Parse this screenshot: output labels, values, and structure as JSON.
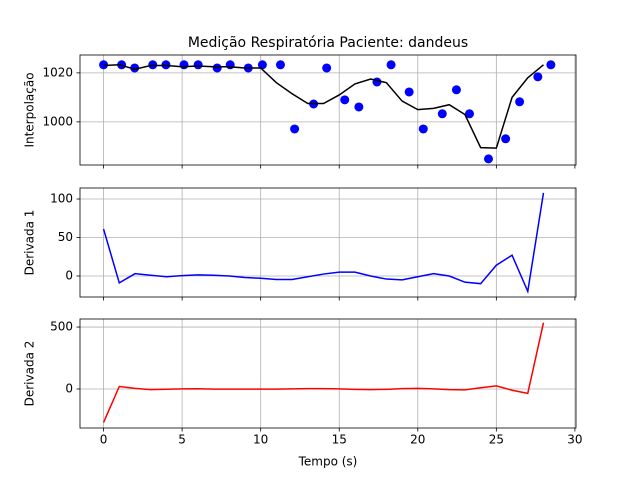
{
  "chart_data": [
    {
      "type": "line",
      "title": "Medição Respiratória Paciente: dandeus",
      "ylabel": "Interpolação",
      "xlim": [
        -1.5,
        30.07
      ],
      "xticks": [
        0,
        5,
        10,
        15,
        20,
        25,
        30
      ],
      "show_xtick_labels": false,
      "ylim": [
        982.4,
        1027.3
      ],
      "yticks": [
        1000,
        1020
      ],
      "grid": true,
      "series": [
        {
          "kind": "scatter",
          "color": "#0000ff",
          "x": [
            0,
            1.15,
            1.98,
            3.13,
            3.97,
            5.12,
            6.02,
            7.23,
            8.06,
            9.21,
            10.11,
            11.26,
            12.16,
            13.37,
            14.2,
            15.35,
            16.25,
            17.4,
            18.3,
            19.45,
            20.35,
            21.56,
            22.46,
            23.29,
            24.5,
            25.59,
            26.48,
            27.64,
            28.47
          ],
          "values": [
            1023.3,
            1023.3,
            1022,
            1023.3,
            1023.3,
            1023.3,
            1023.3,
            1022,
            1023.3,
            1022,
            1023.3,
            1023.3,
            997.1,
            1007.3,
            1022,
            1009,
            1006.1,
            1016.3,
            1023.3,
            1012.2,
            997.1,
            1003.3,
            1013.1,
            1003.3,
            984.9,
            993.1,
            1008.2,
            1018.4,
            1023.3
          ]
        },
        {
          "kind": "line",
          "color": "#000000",
          "x": [
            0,
            1,
            2,
            3,
            4,
            5,
            6,
            7,
            8,
            9,
            10,
            11,
            12,
            13,
            14,
            15,
            16,
            17,
            18,
            19,
            20,
            21,
            22,
            23,
            24,
            25,
            26,
            27,
            28
          ],
          "values": [
            1023,
            1023.3,
            1021.5,
            1023,
            1023,
            1022.5,
            1022.8,
            1022.5,
            1022.5,
            1022,
            1022,
            1016,
            1011.5,
            1007.5,
            1007.5,
            1011,
            1015.5,
            1017.5,
            1016,
            1008.5,
            1005,
            1005.5,
            1007,
            1003,
            989.5,
            989.3,
            1010,
            1018,
            1023.3
          ]
        }
      ]
    },
    {
      "type": "line",
      "ylabel": "Derivada 1",
      "xlim": [
        -1.5,
        30.07
      ],
      "xticks": [
        0,
        5,
        10,
        15,
        20,
        25,
        30
      ],
      "show_xtick_labels": false,
      "ylim": [
        -27.3,
        114.3
      ],
      "yticks": [
        0,
        50,
        100
      ],
      "grid": true,
      "series": [
        {
          "kind": "line",
          "color": "#0000ff",
          "x": [
            0,
            1,
            2,
            3,
            4,
            5,
            6,
            7,
            8,
            9,
            10,
            11,
            12,
            13,
            14,
            15,
            16,
            17,
            18,
            19,
            20,
            21,
            22,
            23,
            24,
            25,
            26,
            27,
            28
          ],
          "values": [
            61,
            -9,
            3,
            1,
            -1,
            0.5,
            1.5,
            1,
            0,
            -2,
            -3,
            -4.5,
            -4.5,
            -1,
            2.5,
            5,
            5,
            0,
            -4,
            -5,
            -1,
            3,
            0,
            -8,
            -10,
            14,
            27,
            -20,
            108
          ]
        }
      ]
    },
    {
      "type": "line",
      "ylabel": "Derivada 2",
      "xlabel": "Tempo (s)",
      "xlim": [
        -1.5,
        30.07
      ],
      "xticks": [
        0,
        5,
        10,
        15,
        20,
        25,
        30
      ],
      "show_xtick_labels": true,
      "ylim": [
        -315,
        565
      ],
      "yticks": [
        0,
        500
      ],
      "grid": true,
      "series": [
        {
          "kind": "line",
          "color": "#ff0000",
          "x": [
            0,
            1,
            2,
            3,
            4,
            5,
            6,
            7,
            8,
            9,
            10,
            11,
            12,
            13,
            14,
            15,
            16,
            17,
            18,
            19,
            20,
            21,
            22,
            23,
            24,
            25,
            26,
            27,
            28
          ],
          "values": [
            -270,
            20,
            5,
            -5,
            -2,
            1,
            2,
            -1,
            -1,
            -1,
            -1,
            -1,
            1,
            3,
            3,
            1,
            -3,
            -5,
            -3,
            3,
            5,
            1,
            -5,
            -7,
            10,
            25,
            -10,
            -35,
            535
          ]
        }
      ]
    }
  ]
}
